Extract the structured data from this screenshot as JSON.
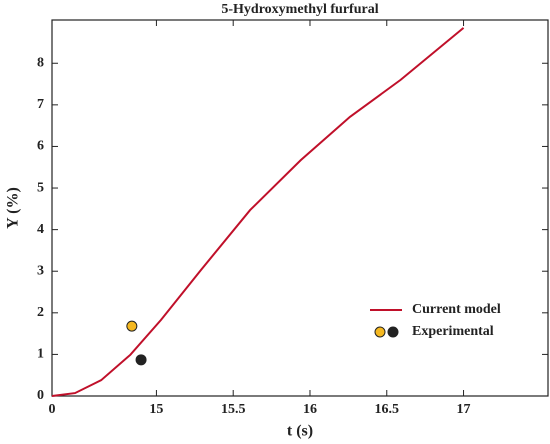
{
  "chart_data": {
    "type": "line",
    "title": "5-Hydroxymethyl furfural",
    "x_label": "t (s)",
    "y_label": "Y (%)",
    "x_origin_label": "0",
    "xlim": [
      14.32,
      17.55
    ],
    "xticks": [
      15,
      15.5,
      16,
      16.5,
      17
    ],
    "ylim": [
      0,
      9.04
    ],
    "yticks": [
      0,
      1,
      2,
      3,
      4,
      5,
      6,
      7,
      8
    ],
    "legend": "lower right",
    "series": [
      {
        "name": "Current model",
        "type": "line",
        "color": "#c0102a",
        "x": [
          14.32,
          14.47,
          14.64,
          14.83,
          15.03,
          15.29,
          15.61,
          15.94,
          16.26,
          16.59,
          17.0
        ],
        "values": [
          0,
          0.07,
          0.38,
          0.99,
          1.83,
          3.03,
          4.47,
          5.67,
          6.71,
          7.6,
          8.85
        ]
      },
      {
        "name": "Experimental",
        "type": "scatter",
        "colors": [
          "#f5b820",
          "#222222"
        ],
        "x": [
          14.84,
          14.9
        ],
        "values": [
          1.68,
          0.87
        ]
      }
    ]
  }
}
